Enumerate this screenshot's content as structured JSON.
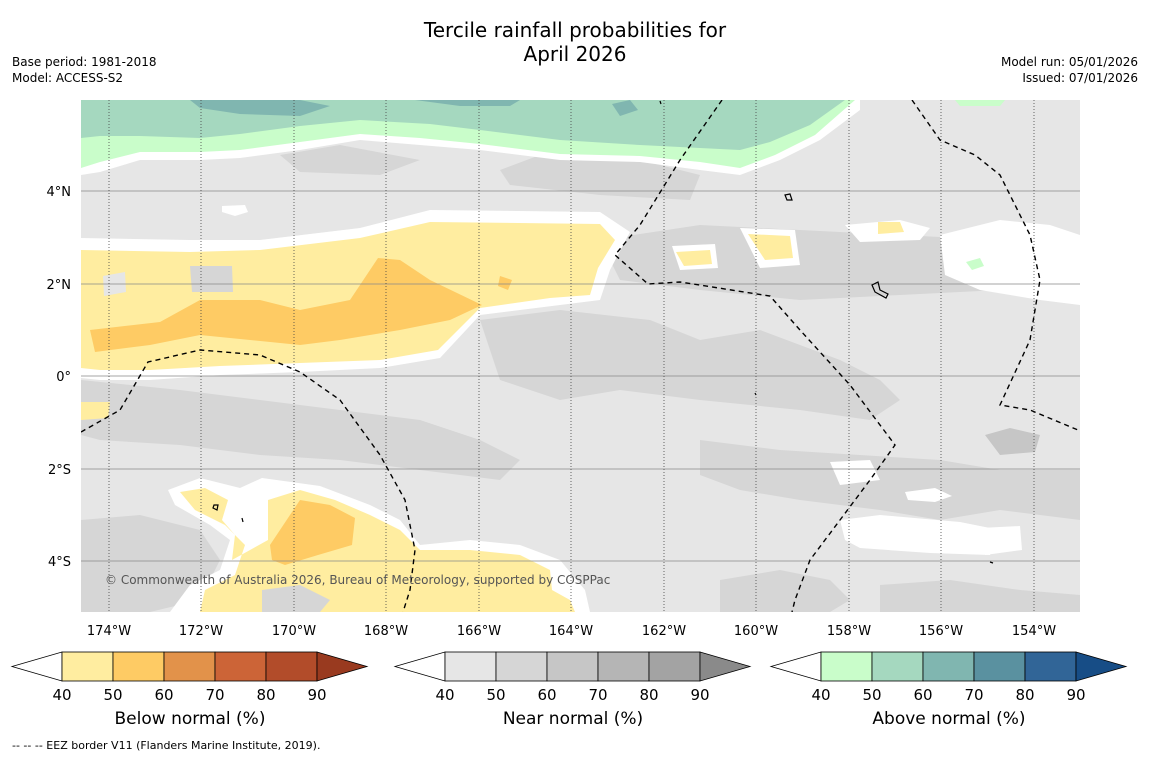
{
  "title_line1": "Tercile rainfall probabilities for",
  "title_line2": "April 2026",
  "base_period": "Base period: 1981-2018",
  "model": "Model: ACCESS-S2",
  "model_run": "Model run: 05/01/2026",
  "issued": "Issued: 07/01/2026",
  "copyright": "© Commonwealth of Australia 2026, Bureau of Meteorology, supported by COSPPac",
  "lon_labels": [
    "174°W",
    "172°W",
    "170°W",
    "168°W",
    "166°W",
    "164°W",
    "162°W",
    "160°W",
    "158°W",
    "156°W",
    "154°W"
  ],
  "lat_labels": [
    "4°N",
    "2°N",
    "0°",
    "2°S",
    "4°S"
  ],
  "colorbars": [
    {
      "name": "below",
      "title": "Below normal (%)",
      "ticks": [
        "40",
        "50",
        "60",
        "70",
        "80",
        "90"
      ],
      "colors": [
        "#ffffff",
        "#ffeda0",
        "#fecb64",
        "#e2924a",
        "#cc6437",
        "#b24c2a",
        "#993a1f"
      ]
    },
    {
      "name": "near",
      "title": "Near normal (%)",
      "ticks": [
        "40",
        "50",
        "60",
        "70",
        "80",
        "90"
      ],
      "colors": [
        "#ffffff",
        "#e6e6e6",
        "#d6d6d6",
        "#c6c6c6",
        "#b5b5b5",
        "#a3a3a3",
        "#8a8a8a"
      ]
    },
    {
      "name": "above",
      "title": "Above normal (%)",
      "ticks": [
        "40",
        "50",
        "60",
        "70",
        "80",
        "90"
      ],
      "colors": [
        "#ffffff",
        "#c9fdca",
        "#a5d8bf",
        "#80b6b0",
        "#5a91a0",
        "#316597",
        "#174d86"
      ]
    }
  ],
  "footnote": "--  --  -- EEZ border V11 (Flanders Marine Institute, 2019)."
}
